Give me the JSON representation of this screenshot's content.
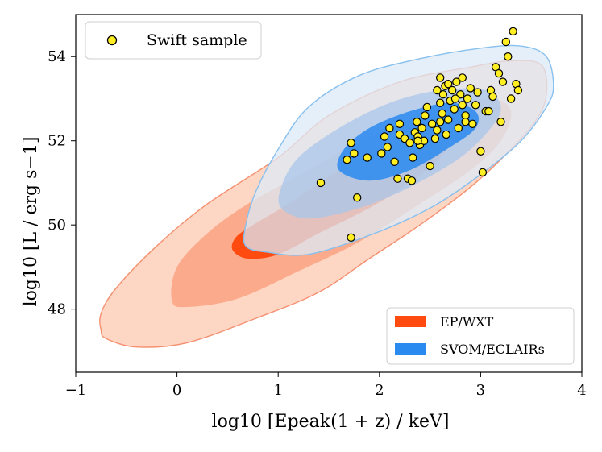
{
  "chart_data": {
    "type": "scatter",
    "xlabel": "log10 [Epeak(1 + z) / keV]",
    "ylabel": "log10 [L / erg s−1]",
    "xlim": [
      -1,
      4
    ],
    "ylim": [
      46.5,
      55.0
    ],
    "x_ticks": [
      -1,
      0,
      1,
      2,
      3,
      4
    ],
    "x_tick_labels": [
      "−1",
      "0",
      "1",
      "2",
      "3",
      "4"
    ],
    "y_ticks": [
      48,
      50,
      52,
      54
    ],
    "y_tick_labels": [
      "48",
      "50",
      "52",
      "54"
    ],
    "grid": false,
    "legend_scatter": {
      "placement": "top-left",
      "label": "Swift sample"
    },
    "legend_regions": {
      "placement": "bottom-right",
      "entries": [
        {
          "label": "EP/WXT",
          "color": "#ff4a10"
        },
        {
          "label": "SVOM/ECLAIRs",
          "color": "#2a8af0"
        }
      ]
    },
    "scatter": {
      "name": "Swift sample",
      "color": "#ffee22",
      "edge_color": "#000000",
      "points": [
        [
          1.72,
          49.7
        ],
        [
          1.42,
          51.0
        ],
        [
          1.78,
          50.65
        ],
        [
          1.88,
          51.6
        ],
        [
          1.68,
          51.55
        ],
        [
          1.75,
          51.7
        ],
        [
          1.72,
          51.95
        ],
        [
          2.02,
          51.7
        ],
        [
          2.08,
          51.85
        ],
        [
          2.05,
          52.1
        ],
        [
          2.1,
          52.3
        ],
        [
          2.15,
          51.5
        ],
        [
          2.18,
          51.1
        ],
        [
          2.2,
          52.15
        ],
        [
          2.2,
          52.4
        ],
        [
          2.25,
          52.05
        ],
        [
          2.28,
          51.1
        ],
        [
          2.3,
          51.95
        ],
        [
          2.32,
          51.05
        ],
        [
          2.33,
          51.6
        ],
        [
          2.35,
          52.2
        ],
        [
          2.37,
          52.45
        ],
        [
          2.38,
          52.1
        ],
        [
          2.4,
          51.9
        ],
        [
          2.42,
          52.3
        ],
        [
          2.44,
          52.0
        ],
        [
          2.45,
          52.6
        ],
        [
          2.47,
          52.8
        ],
        [
          2.5,
          51.4
        ],
        [
          2.52,
          52.4
        ],
        [
          2.55,
          52.05
        ],
        [
          2.57,
          52.25
        ],
        [
          2.6,
          52.45
        ],
        [
          2.6,
          52.9
        ],
        [
          2.62,
          52.65
        ],
        [
          2.63,
          53.1
        ],
        [
          2.65,
          53.3
        ],
        [
          2.66,
          52.15
        ],
        [
          2.68,
          52.5
        ],
        [
          2.7,
          52.95
        ],
        [
          2.72,
          53.2
        ],
        [
          2.74,
          52.75
        ],
        [
          2.76,
          53.4
        ],
        [
          2.78,
          52.3
        ],
        [
          2.8,
          53.1
        ],
        [
          2.82,
          52.85
        ],
        [
          2.85,
          52.6
        ],
        [
          2.87,
          53.0
        ],
        [
          2.9,
          53.25
        ],
        [
          2.92,
          52.4
        ],
        [
          2.95,
          52.85
        ],
        [
          2.97,
          53.15
        ],
        [
          2.6,
          53.5
        ],
        [
          2.75,
          53.0
        ],
        [
          2.82,
          53.5
        ],
        [
          3.0,
          51.75
        ],
        [
          3.02,
          51.25
        ],
        [
          3.05,
          52.7
        ],
        [
          3.08,
          52.7
        ],
        [
          3.1,
          53.2
        ],
        [
          3.12,
          53.05
        ],
        [
          3.15,
          53.75
        ],
        [
          3.18,
          53.6
        ],
        [
          3.2,
          52.45
        ],
        [
          3.22,
          53.4
        ],
        [
          3.25,
          54.35
        ],
        [
          3.27,
          54.0
        ],
        [
          3.3,
          53.0
        ],
        [
          3.32,
          54.6
        ],
        [
          3.35,
          53.35
        ],
        [
          3.37,
          53.2
        ],
        [
          2.57,
          53.2
        ],
        [
          2.68,
          53.35
        ],
        [
          2.85,
          52.45
        ],
        [
          2.38,
          52.0
        ]
      ]
    },
    "regions": [
      {
        "name": "EP/WXT",
        "level": "outer",
        "color": "#fdd6c4",
        "edge": "#f59070",
        "outline": [
          [
            -0.75,
            47.5
          ],
          [
            -0.7,
            47.3
          ],
          [
            -0.4,
            47.1
          ],
          [
            0.1,
            47.2
          ],
          [
            0.8,
            47.8
          ],
          [
            1.4,
            48.4
          ],
          [
            1.9,
            49.2
          ],
          [
            2.4,
            50.0
          ],
          [
            2.9,
            50.9
          ],
          [
            3.3,
            51.8
          ],
          [
            3.55,
            52.5
          ],
          [
            3.65,
            53.1
          ],
          [
            3.6,
            53.8
          ],
          [
            3.3,
            53.9
          ],
          [
            2.9,
            53.75
          ],
          [
            2.2,
            53.4
          ],
          [
            1.5,
            52.6
          ],
          [
            1.0,
            51.6
          ],
          [
            0.3,
            50.5
          ],
          [
            -0.2,
            49.5
          ],
          [
            -0.6,
            48.5
          ],
          [
            -0.75,
            47.9
          ]
        ]
      },
      {
        "name": "EP/WXT",
        "level": "middle",
        "color": "#fbab8c",
        "outline": [
          [
            -0.05,
            48.2
          ],
          [
            0.1,
            48.05
          ],
          [
            0.6,
            48.25
          ],
          [
            1.2,
            48.9
          ],
          [
            1.8,
            49.6
          ],
          [
            2.4,
            50.5
          ],
          [
            2.9,
            51.3
          ],
          [
            3.2,
            52.0
          ],
          [
            3.3,
            52.7
          ],
          [
            3.1,
            53.0
          ],
          [
            2.6,
            52.8
          ],
          [
            1.9,
            52.1
          ],
          [
            1.3,
            51.3
          ],
          [
            0.7,
            50.5
          ],
          [
            0.3,
            49.8
          ],
          [
            0.0,
            49.0
          ]
        ]
      },
      {
        "name": "EP/WXT",
        "level": "inner",
        "color": "#ff4a10",
        "outline": [
          [
            0.55,
            49.4
          ],
          [
            0.7,
            49.2
          ],
          [
            1.0,
            49.3
          ],
          [
            1.4,
            49.8
          ],
          [
            1.9,
            50.4
          ],
          [
            2.3,
            51.0
          ],
          [
            2.6,
            51.6
          ],
          [
            2.75,
            52.2
          ],
          [
            2.55,
            52.4
          ],
          [
            2.1,
            52.0
          ],
          [
            1.6,
            51.3
          ],
          [
            1.1,
            50.5
          ],
          [
            0.75,
            50.0
          ],
          [
            0.58,
            49.7
          ]
        ]
      },
      {
        "name": "SVOM/ECLAIRs",
        "level": "outer",
        "color": "#dce9f7",
        "edge": "#88c0ee",
        "outline": [
          [
            0.68,
            49.5
          ],
          [
            0.9,
            49.35
          ],
          [
            1.3,
            49.3
          ],
          [
            1.9,
            49.75
          ],
          [
            2.5,
            50.4
          ],
          [
            3.0,
            51.2
          ],
          [
            3.4,
            52.0
          ],
          [
            3.65,
            52.8
          ],
          [
            3.72,
            53.3
          ],
          [
            3.65,
            54.0
          ],
          [
            3.4,
            54.25
          ],
          [
            3.0,
            54.2
          ],
          [
            2.4,
            53.95
          ],
          [
            1.8,
            53.55
          ],
          [
            1.3,
            52.8
          ],
          [
            1.0,
            51.8
          ],
          [
            0.78,
            50.8
          ],
          [
            0.68,
            50.0
          ]
        ]
      },
      {
        "name": "SVOM/ECLAIRs",
        "level": "middle",
        "color": "#a8c6ea",
        "outline": [
          [
            1.03,
            50.4
          ],
          [
            1.3,
            50.15
          ],
          [
            1.8,
            50.4
          ],
          [
            2.3,
            50.9
          ],
          [
            2.8,
            51.6
          ],
          [
            3.1,
            52.3
          ],
          [
            3.2,
            52.8
          ],
          [
            3.05,
            53.2
          ],
          [
            2.6,
            53.2
          ],
          [
            2.1,
            52.9
          ],
          [
            1.6,
            52.3
          ],
          [
            1.2,
            51.6
          ],
          [
            1.03,
            50.9
          ]
        ]
      },
      {
        "name": "SVOM/ECLAIRs",
        "level": "inner",
        "color": "#2a8af0",
        "outline": [
          [
            1.6,
            51.3
          ],
          [
            1.9,
            51.05
          ],
          [
            2.3,
            51.3
          ],
          [
            2.7,
            51.85
          ],
          [
            2.95,
            52.3
          ],
          [
            2.95,
            52.7
          ],
          [
            2.7,
            52.9
          ],
          [
            2.3,
            52.7
          ],
          [
            1.9,
            52.3
          ],
          [
            1.65,
            51.8
          ]
        ]
      }
    ]
  }
}
